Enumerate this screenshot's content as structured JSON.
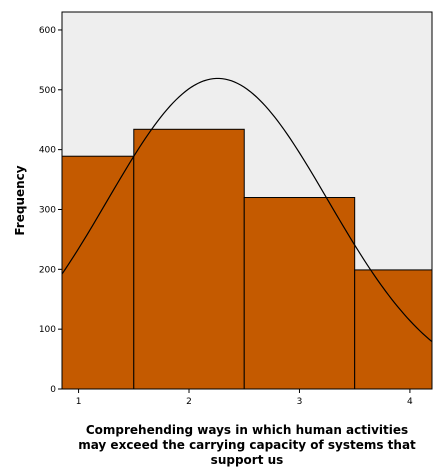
{
  "chart_data": {
    "type": "bar",
    "subtype": "histogram-with-normal-curve",
    "categories": [
      "1",
      "2",
      "3",
      "4"
    ],
    "values": [
      389,
      434,
      320,
      199
    ],
    "ylabel": "Frequency",
    "xlabel_lines": [
      "Comprehending ways in which human activities",
      "may exceed the carrying capacity of systems that",
      "support us"
    ],
    "x_ticks": [
      "1",
      "2",
      "3",
      "4"
    ],
    "y_ticks": [
      "0",
      "100",
      "200",
      "300",
      "400",
      "500",
      "600"
    ],
    "ylim": [
      0,
      630
    ],
    "xlim": [
      0.85,
      4.2
    ],
    "grid": false,
    "normal_curve": {
      "mean": 2.26,
      "sd": 1.0,
      "peak": 519
    },
    "colors": {
      "bar_fill": "#c45a00",
      "bar_stroke": "#000000",
      "plot_background": "#eeeeee",
      "curve": "#000000"
    }
  }
}
